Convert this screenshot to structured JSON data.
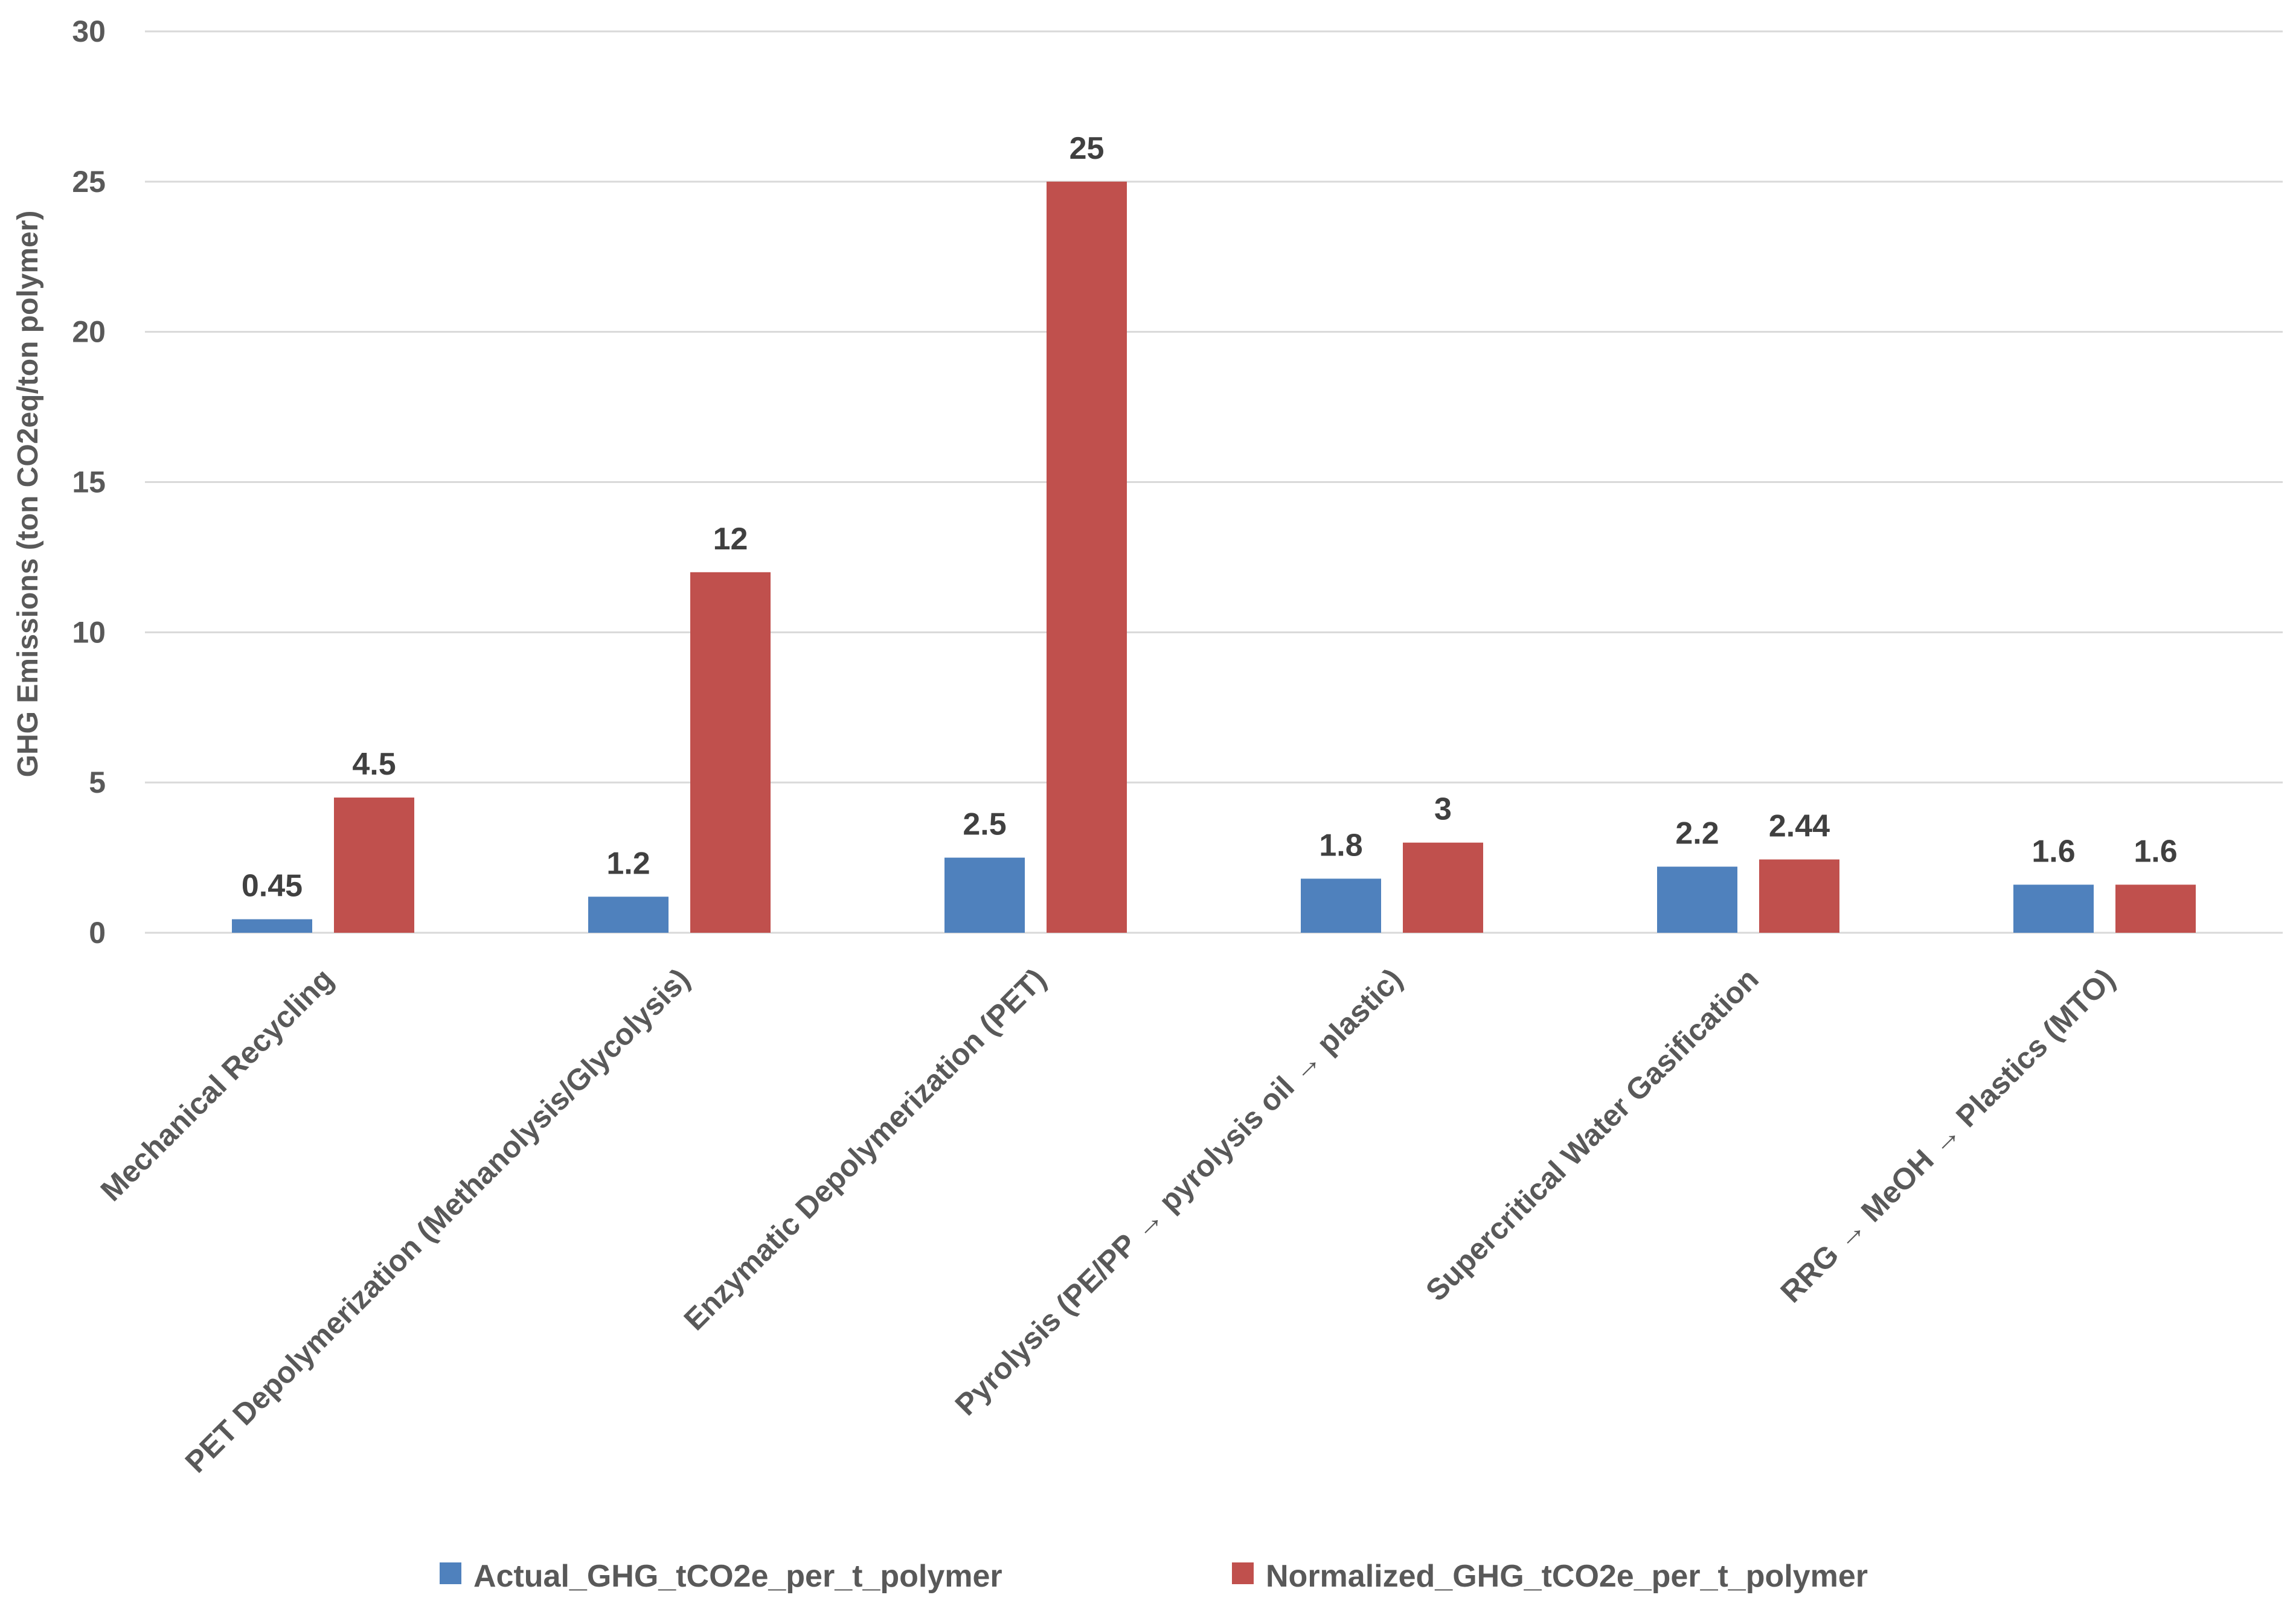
{
  "chart_data": {
    "type": "bar",
    "title": "",
    "xlabel": "",
    "ylabel": "GHG Emissions (ton CO2eq/ton polymer)",
    "ylim": [
      0,
      30
    ],
    "yticks": [
      0,
      5,
      10,
      15,
      20,
      25,
      30
    ],
    "grid": true,
    "legend_position": "bottom",
    "categories": [
      "Mechanical Recycling",
      "PET Depolymerization (Methanolysis/Glycolysis)",
      "Enzymatic Depolymerization (PET)",
      "Pyrolysis (PE/PP → pyrolysis oil → plastic)",
      "Supercritical Water Gasification",
      "RRG → MeOH → Plastics (MTO)"
    ],
    "series": [
      {
        "name": "Actual_GHG_tCO2e_per_t_polymer",
        "color": "#4f81bd",
        "values": [
          0.45,
          1.2,
          2.5,
          1.8,
          2.2,
          1.6
        ],
        "labels": [
          "0.45",
          "1.2",
          "2.5",
          "1.8",
          "2.2",
          "1.6"
        ]
      },
      {
        "name": "Normalized_GHG_tCO2e_per_t_polymer",
        "color": "#c0504d",
        "values": [
          4.5,
          12,
          25,
          3,
          2.44,
          1.6
        ],
        "labels": [
          "4.5",
          "12",
          "25",
          "3",
          "2.44",
          "1.6"
        ]
      }
    ]
  }
}
